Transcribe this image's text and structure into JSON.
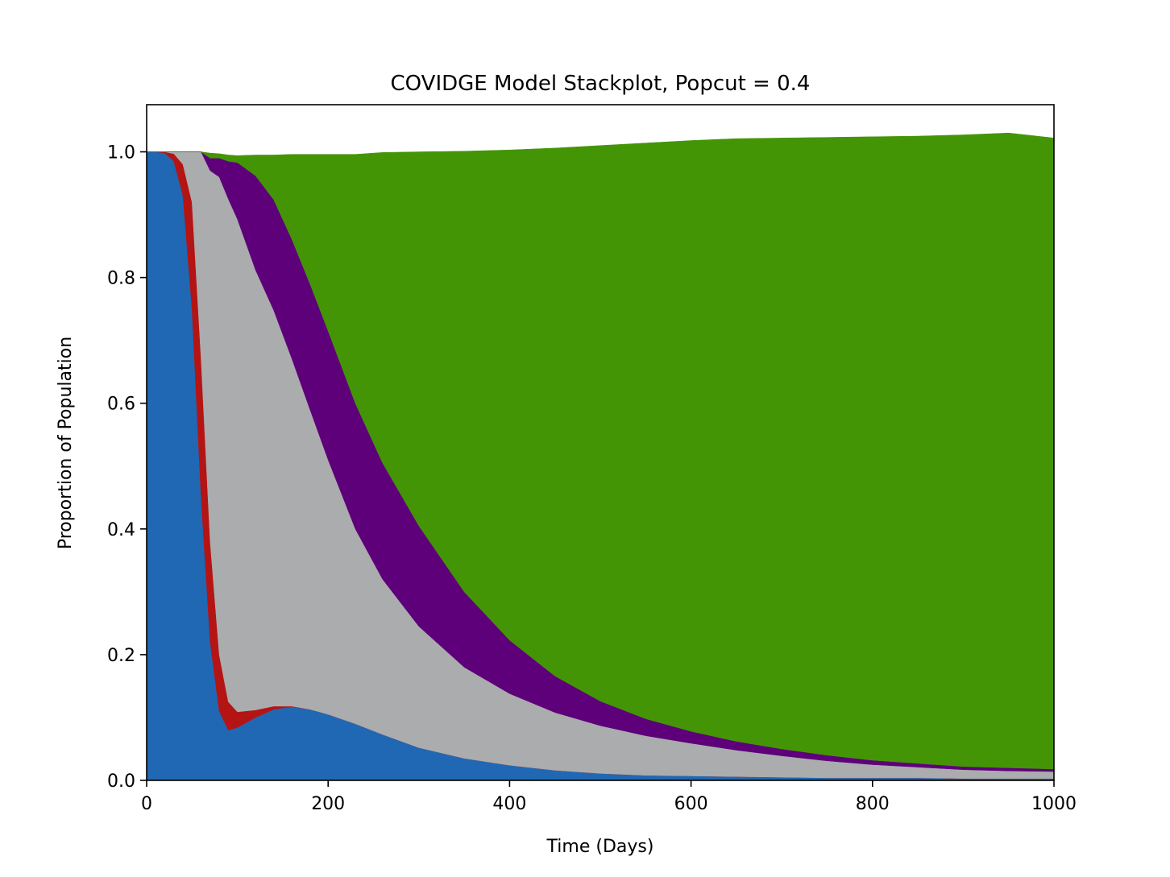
{
  "chart_data": {
    "type": "area",
    "title": "COVIDGE Model Stackplot, Popcut = 0.4",
    "xlabel": "Time (Days)",
    "ylabel": "Proportion of Population",
    "xlim": [
      0,
      1000
    ],
    "ylim": [
      0,
      1.075
    ],
    "xticks": [
      0,
      200,
      400,
      600,
      800,
      1000
    ],
    "yticks": [
      0.0,
      0.2,
      0.4,
      0.6,
      0.8,
      1.0
    ],
    "xtick_labels": [
      "0",
      "200",
      "400",
      "600",
      "800",
      "1000"
    ],
    "ytick_labels": [
      "0.0",
      "0.2",
      "0.4",
      "0.6",
      "0.8",
      "1.0"
    ],
    "grid": false,
    "legend": "none",
    "stacked": true,
    "x": [
      0,
      10,
      20,
      30,
      40,
      50,
      60,
      70,
      80,
      90,
      100,
      120,
      140,
      160,
      180,
      200,
      230,
      260,
      300,
      350,
      400,
      450,
      500,
      550,
      600,
      650,
      700,
      750,
      800,
      850,
      900,
      950,
      1000
    ],
    "series": [
      {
        "color": "#2068b3",
        "values": [
          1.0,
          1.0,
          0.998,
          0.985,
          0.93,
          0.75,
          0.45,
          0.22,
          0.11,
          0.08,
          0.084,
          0.1,
          0.113,
          0.117,
          0.113,
          0.105,
          0.09,
          0.073,
          0.052,
          0.035,
          0.024,
          0.016,
          0.011,
          0.008,
          0.007,
          0.006,
          0.005,
          0.004,
          0.004,
          0.004,
          0.003,
          0.003,
          0.003
        ]
      },
      {
        "color": "#b41414",
        "values": [
          0.0,
          0.0,
          0.002,
          0.012,
          0.05,
          0.17,
          0.22,
          0.16,
          0.09,
          0.045,
          0.025,
          0.012,
          0.005,
          0.001,
          0.0,
          0.0,
          0.0,
          0.0,
          0.0,
          0.0,
          0.0,
          0.0,
          0.0,
          0.0,
          0.0,
          0.0,
          0.0,
          0.0,
          0.0,
          0.0,
          0.0,
          0.0,
          0.0
        ]
      },
      {
        "color": "#abacad",
        "values": [
          0.0,
          0.0,
          0.0,
          0.003,
          0.02,
          0.08,
          0.33,
          0.59,
          0.76,
          0.8,
          0.784,
          0.7,
          0.63,
          0.553,
          0.477,
          0.405,
          0.31,
          0.247,
          0.193,
          0.145,
          0.114,
          0.092,
          0.076,
          0.063,
          0.052,
          0.042,
          0.034,
          0.027,
          0.021,
          0.017,
          0.014,
          0.012,
          0.011
        ]
      },
      {
        "color": "#5e007a",
        "values": [
          0.0,
          0.0,
          0.0,
          0.0,
          0.0,
          0.0,
          0.0,
          0.02,
          0.03,
          0.06,
          0.09,
          0.15,
          0.176,
          0.19,
          0.2,
          0.205,
          0.2,
          0.185,
          0.16,
          0.12,
          0.085,
          0.058,
          0.039,
          0.027,
          0.019,
          0.014,
          0.011,
          0.009,
          0.007,
          0.006,
          0.005,
          0.005,
          0.004
        ]
      },
      {
        "color": "#439506",
        "values": [
          0.0,
          0.0,
          0.0,
          0.0,
          0.0,
          0.0,
          0.0,
          0.008,
          0.007,
          0.01,
          0.011,
          0.033,
          0.071,
          0.135,
          0.206,
          0.281,
          0.396,
          0.494,
          0.595,
          0.701,
          0.78,
          0.84,
          0.884,
          0.916,
          0.94,
          0.959,
          0.972,
          0.983,
          0.992,
          0.998,
          1.005,
          1.01,
          1.004
        ]
      }
    ]
  }
}
